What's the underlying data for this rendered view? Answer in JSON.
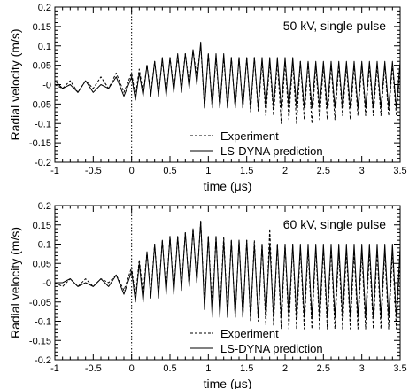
{
  "chart_data": [
    {
      "type": "line",
      "annotation": "50 kV, single pulse",
      "xlabel": "time (μs)",
      "ylabel": "Radial velocity (m/s)",
      "xlim": [
        -1,
        3.5
      ],
      "ylim": [
        -0.2,
        0.2
      ],
      "xticks": [
        -1,
        -0.5,
        0,
        0.5,
        1,
        1.5,
        2,
        2.5,
        3,
        3.5
      ],
      "xtick_labels": [
        "-1",
        "-0.5",
        "0",
        "0.5",
        "1",
        "1.5",
        "2",
        "2.5",
        "3",
        "3.5"
      ],
      "yticks": [
        -0.2,
        -0.15,
        -0.1,
        -0.05,
        0,
        0.05,
        0.1,
        0.15,
        0.2
      ],
      "ytick_labels": [
        "-0.2",
        "-0.15",
        "-0.1",
        "-0.05",
        "-0",
        "0.05",
        "0.1",
        "0.15",
        "0.2"
      ],
      "vline_x": 0,
      "legend_position": "bottom-right",
      "series": [
        {
          "name": "Experiment",
          "style": "dashed",
          "x": [
            -1.0,
            -0.9,
            -0.8,
            -0.7,
            -0.6,
            -0.5,
            -0.4,
            -0.3,
            -0.2,
            -0.1,
            0.0,
            0.05,
            0.1,
            0.15,
            0.2,
            0.25,
            0.3,
            0.35,
            0.4,
            0.45,
            0.5,
            0.55,
            0.6,
            0.65,
            0.7,
            0.75,
            0.8,
            0.85,
            0.9,
            0.95,
            1.0,
            1.05,
            1.1,
            1.15,
            1.2,
            1.25,
            1.3,
            1.35,
            1.4,
            1.45,
            1.5,
            1.55,
            1.6,
            1.65,
            1.7,
            1.75,
            1.8,
            1.85,
            1.9,
            1.95,
            2.0,
            2.05,
            2.1,
            2.15,
            2.2,
            2.25,
            2.3,
            2.35,
            2.4,
            2.45,
            2.5,
            2.55,
            2.6,
            2.65,
            2.7,
            2.75,
            2.8,
            2.85,
            2.9,
            2.95,
            3.0,
            3.05,
            3.1,
            3.15,
            3.2,
            3.25,
            3.3,
            3.35,
            3.4,
            3.45,
            3.5
          ],
          "y": [
            0.0,
            -0.01,
            0.01,
            -0.02,
            0.01,
            -0.01,
            0.02,
            -0.01,
            0.03,
            -0.02,
            0.03,
            -0.03,
            0.04,
            -0.02,
            0.05,
            -0.02,
            0.06,
            -0.02,
            0.06,
            -0.02,
            0.07,
            -0.01,
            0.07,
            -0.01,
            0.08,
            0.0,
            0.09,
            0.02,
            0.1,
            -0.06,
            0.08,
            -0.06,
            0.07,
            -0.06,
            0.07,
            -0.06,
            0.07,
            -0.06,
            0.07,
            -0.06,
            0.07,
            -0.07,
            0.07,
            -0.07,
            0.06,
            -0.08,
            0.06,
            -0.08,
            0.06,
            -0.1,
            0.06,
            -0.09,
            0.06,
            -0.1,
            0.06,
            -0.09,
            0.06,
            -0.1,
            0.05,
            -0.09,
            0.05,
            -0.09,
            0.05,
            -0.09,
            0.05,
            -0.08,
            0.05,
            -0.09,
            0.05,
            -0.08,
            0.05,
            -0.08,
            0.05,
            -0.08,
            0.05,
            -0.08,
            0.05,
            -0.08,
            0.05,
            -0.08,
            0.04
          ]
        },
        {
          "name": "LS-DYNA prediction",
          "style": "solid",
          "x": [
            -1.0,
            -0.9,
            -0.8,
            -0.7,
            -0.6,
            -0.5,
            -0.4,
            -0.3,
            -0.2,
            -0.1,
            0.0,
            0.05,
            0.1,
            0.15,
            0.2,
            0.25,
            0.3,
            0.35,
            0.4,
            0.45,
            0.5,
            0.55,
            0.6,
            0.65,
            0.7,
            0.75,
            0.8,
            0.85,
            0.9,
            0.95,
            1.0,
            1.05,
            1.1,
            1.15,
            1.2,
            1.25,
            1.3,
            1.35,
            1.4,
            1.45,
            1.5,
            1.55,
            1.6,
            1.65,
            1.7,
            1.75,
            1.8,
            1.85,
            1.9,
            1.95,
            2.0,
            2.05,
            2.1,
            2.15,
            2.2,
            2.25,
            2.3,
            2.35,
            2.4,
            2.45,
            2.5,
            2.55,
            2.6,
            2.65,
            2.7,
            2.75,
            2.8,
            2.85,
            2.9,
            2.95,
            3.0,
            3.05,
            3.1,
            3.15,
            3.2,
            3.25,
            3.3,
            3.35,
            3.4,
            3.45,
            3.5
          ],
          "y": [
            0.01,
            -0.01,
            0.0,
            -0.02,
            0.01,
            -0.02,
            0.0,
            -0.01,
            0.02,
            -0.03,
            0.02,
            -0.04,
            0.03,
            -0.03,
            0.05,
            -0.03,
            0.06,
            -0.03,
            0.07,
            -0.03,
            0.07,
            -0.02,
            0.08,
            -0.02,
            0.08,
            -0.01,
            0.09,
            0.0,
            0.11,
            -0.06,
            0.08,
            -0.06,
            0.08,
            -0.06,
            0.08,
            -0.06,
            0.07,
            -0.06,
            0.07,
            -0.06,
            0.07,
            -0.06,
            0.07,
            -0.06,
            0.07,
            -0.06,
            0.07,
            -0.06,
            0.07,
            -0.06,
            0.07,
            -0.06,
            0.07,
            -0.06,
            0.06,
            -0.06,
            0.06,
            -0.06,
            0.06,
            -0.06,
            0.06,
            -0.06,
            0.06,
            -0.06,
            0.06,
            -0.06,
            0.06,
            -0.06,
            0.06,
            -0.06,
            0.06,
            -0.06,
            0.06,
            -0.06,
            0.06,
            -0.06,
            0.06,
            -0.06,
            0.06,
            -0.06,
            0.06
          ]
        }
      ]
    },
    {
      "type": "line",
      "annotation": "60 kV, single pulse",
      "xlabel": "time (μs)",
      "ylabel": "Radial velocity (m/s)",
      "xlim": [
        -1,
        3.5
      ],
      "ylim": [
        -0.2,
        0.2
      ],
      "xticks": [
        -1,
        -0.5,
        0,
        0.5,
        1,
        1.5,
        2,
        2.5,
        3,
        3.5
      ],
      "xtick_labels": [
        "-1",
        "-0.5",
        "0",
        "0.5",
        "1",
        "1.5",
        "2",
        "2.5",
        "3",
        "3.5"
      ],
      "yticks": [
        -0.2,
        -0.15,
        -0.1,
        -0.05,
        0,
        0.05,
        0.1,
        0.15,
        0.2
      ],
      "ytick_labels": [
        "-0.2",
        "-0.15",
        "-0.1",
        "-0.05",
        "-0",
        "0.05",
        "0.1",
        "0.15",
        "0.2"
      ],
      "vline_x": 0,
      "legend_position": "bottom-right",
      "series": [
        {
          "name": "Experiment",
          "style": "dashed",
          "x": [
            -1.0,
            -0.9,
            -0.8,
            -0.7,
            -0.6,
            -0.5,
            -0.4,
            -0.3,
            -0.2,
            -0.1,
            0.0,
            0.05,
            0.1,
            0.15,
            0.2,
            0.25,
            0.3,
            0.35,
            0.4,
            0.45,
            0.5,
            0.55,
            0.6,
            0.65,
            0.7,
            0.75,
            0.8,
            0.85,
            0.9,
            0.95,
            1.0,
            1.05,
            1.1,
            1.15,
            1.2,
            1.25,
            1.3,
            1.35,
            1.4,
            1.45,
            1.5,
            1.55,
            1.6,
            1.65,
            1.7,
            1.75,
            1.8,
            1.85,
            1.9,
            1.95,
            2.0,
            2.05,
            2.1,
            2.15,
            2.2,
            2.25,
            2.3,
            2.35,
            2.4,
            2.45,
            2.5,
            2.55,
            2.6,
            2.65,
            2.7,
            2.75,
            2.8,
            2.85,
            2.9,
            2.95,
            3.0,
            3.05,
            3.1,
            3.15,
            3.2,
            3.25,
            3.3,
            3.35,
            3.4,
            3.45,
            3.5
          ],
          "y": [
            0.0,
            -0.01,
            0.01,
            -0.01,
            0.01,
            -0.01,
            0.01,
            0.0,
            0.02,
            -0.02,
            0.04,
            -0.04,
            0.06,
            -0.03,
            0.08,
            -0.03,
            0.1,
            -0.03,
            0.11,
            -0.02,
            0.12,
            -0.02,
            0.12,
            -0.01,
            0.13,
            -0.01,
            0.14,
            0.0,
            0.16,
            -0.06,
            0.12,
            -0.07,
            0.12,
            -0.08,
            0.12,
            -0.08,
            0.11,
            -0.09,
            0.11,
            -0.09,
            0.11,
            -0.1,
            0.11,
            -0.1,
            0.1,
            -0.11,
            0.14,
            -0.11,
            0.1,
            -0.12,
            0.1,
            -0.12,
            0.1,
            -0.12,
            0.09,
            -0.12,
            0.09,
            -0.12,
            0.09,
            -0.12,
            0.09,
            -0.12,
            0.09,
            -0.12,
            0.08,
            -0.12,
            0.08,
            -0.12,
            0.08,
            -0.12,
            0.08,
            -0.12,
            0.08,
            -0.12,
            0.08,
            -0.12,
            0.08,
            -0.12,
            0.08,
            -0.12,
            0.07
          ]
        },
        {
          "name": "LS-DYNA prediction",
          "style": "solid",
          "x": [
            -1.0,
            -0.9,
            -0.8,
            -0.7,
            -0.6,
            -0.5,
            -0.4,
            -0.3,
            -0.2,
            -0.1,
            0.0,
            0.05,
            0.1,
            0.15,
            0.2,
            0.25,
            0.3,
            0.35,
            0.4,
            0.45,
            0.5,
            0.55,
            0.6,
            0.65,
            0.7,
            0.75,
            0.8,
            0.85,
            0.9,
            0.95,
            1.0,
            1.05,
            1.1,
            1.15,
            1.2,
            1.25,
            1.3,
            1.35,
            1.4,
            1.45,
            1.5,
            1.55,
            1.6,
            1.65,
            1.7,
            1.75,
            1.8,
            1.85,
            1.9,
            1.95,
            2.0,
            2.05,
            2.1,
            2.15,
            2.2,
            2.25,
            2.3,
            2.35,
            2.4,
            2.45,
            2.5,
            2.55,
            2.6,
            2.65,
            2.7,
            2.75,
            2.8,
            2.85,
            2.9,
            2.95,
            3.0,
            3.05,
            3.1,
            3.15,
            3.2,
            3.25,
            3.3,
            3.35,
            3.4,
            3.45,
            3.5
          ],
          "y": [
            0.0,
            0.0,
            0.01,
            -0.01,
            0.0,
            -0.01,
            0.01,
            -0.01,
            0.02,
            -0.03,
            0.03,
            -0.05,
            0.05,
            -0.05,
            0.08,
            -0.04,
            0.1,
            -0.04,
            0.11,
            -0.03,
            0.12,
            -0.03,
            0.12,
            -0.02,
            0.13,
            -0.01,
            0.14,
            0.0,
            0.16,
            -0.07,
            0.12,
            -0.09,
            0.12,
            -0.09,
            0.11,
            -0.09,
            0.11,
            -0.09,
            0.11,
            -0.09,
            0.11,
            -0.09,
            0.1,
            -0.09,
            0.1,
            -0.09,
            0.1,
            -0.09,
            0.1,
            -0.09,
            0.1,
            -0.09,
            0.1,
            -0.09,
            0.1,
            -0.09,
            0.1,
            -0.09,
            0.1,
            -0.09,
            0.1,
            -0.09,
            0.1,
            -0.09,
            0.1,
            -0.09,
            0.1,
            -0.09,
            0.1,
            -0.09,
            0.1,
            -0.09,
            0.1,
            -0.09,
            0.1,
            -0.09,
            0.1,
            -0.09,
            0.1,
            -0.09,
            0.09
          ]
        }
      ]
    }
  ]
}
